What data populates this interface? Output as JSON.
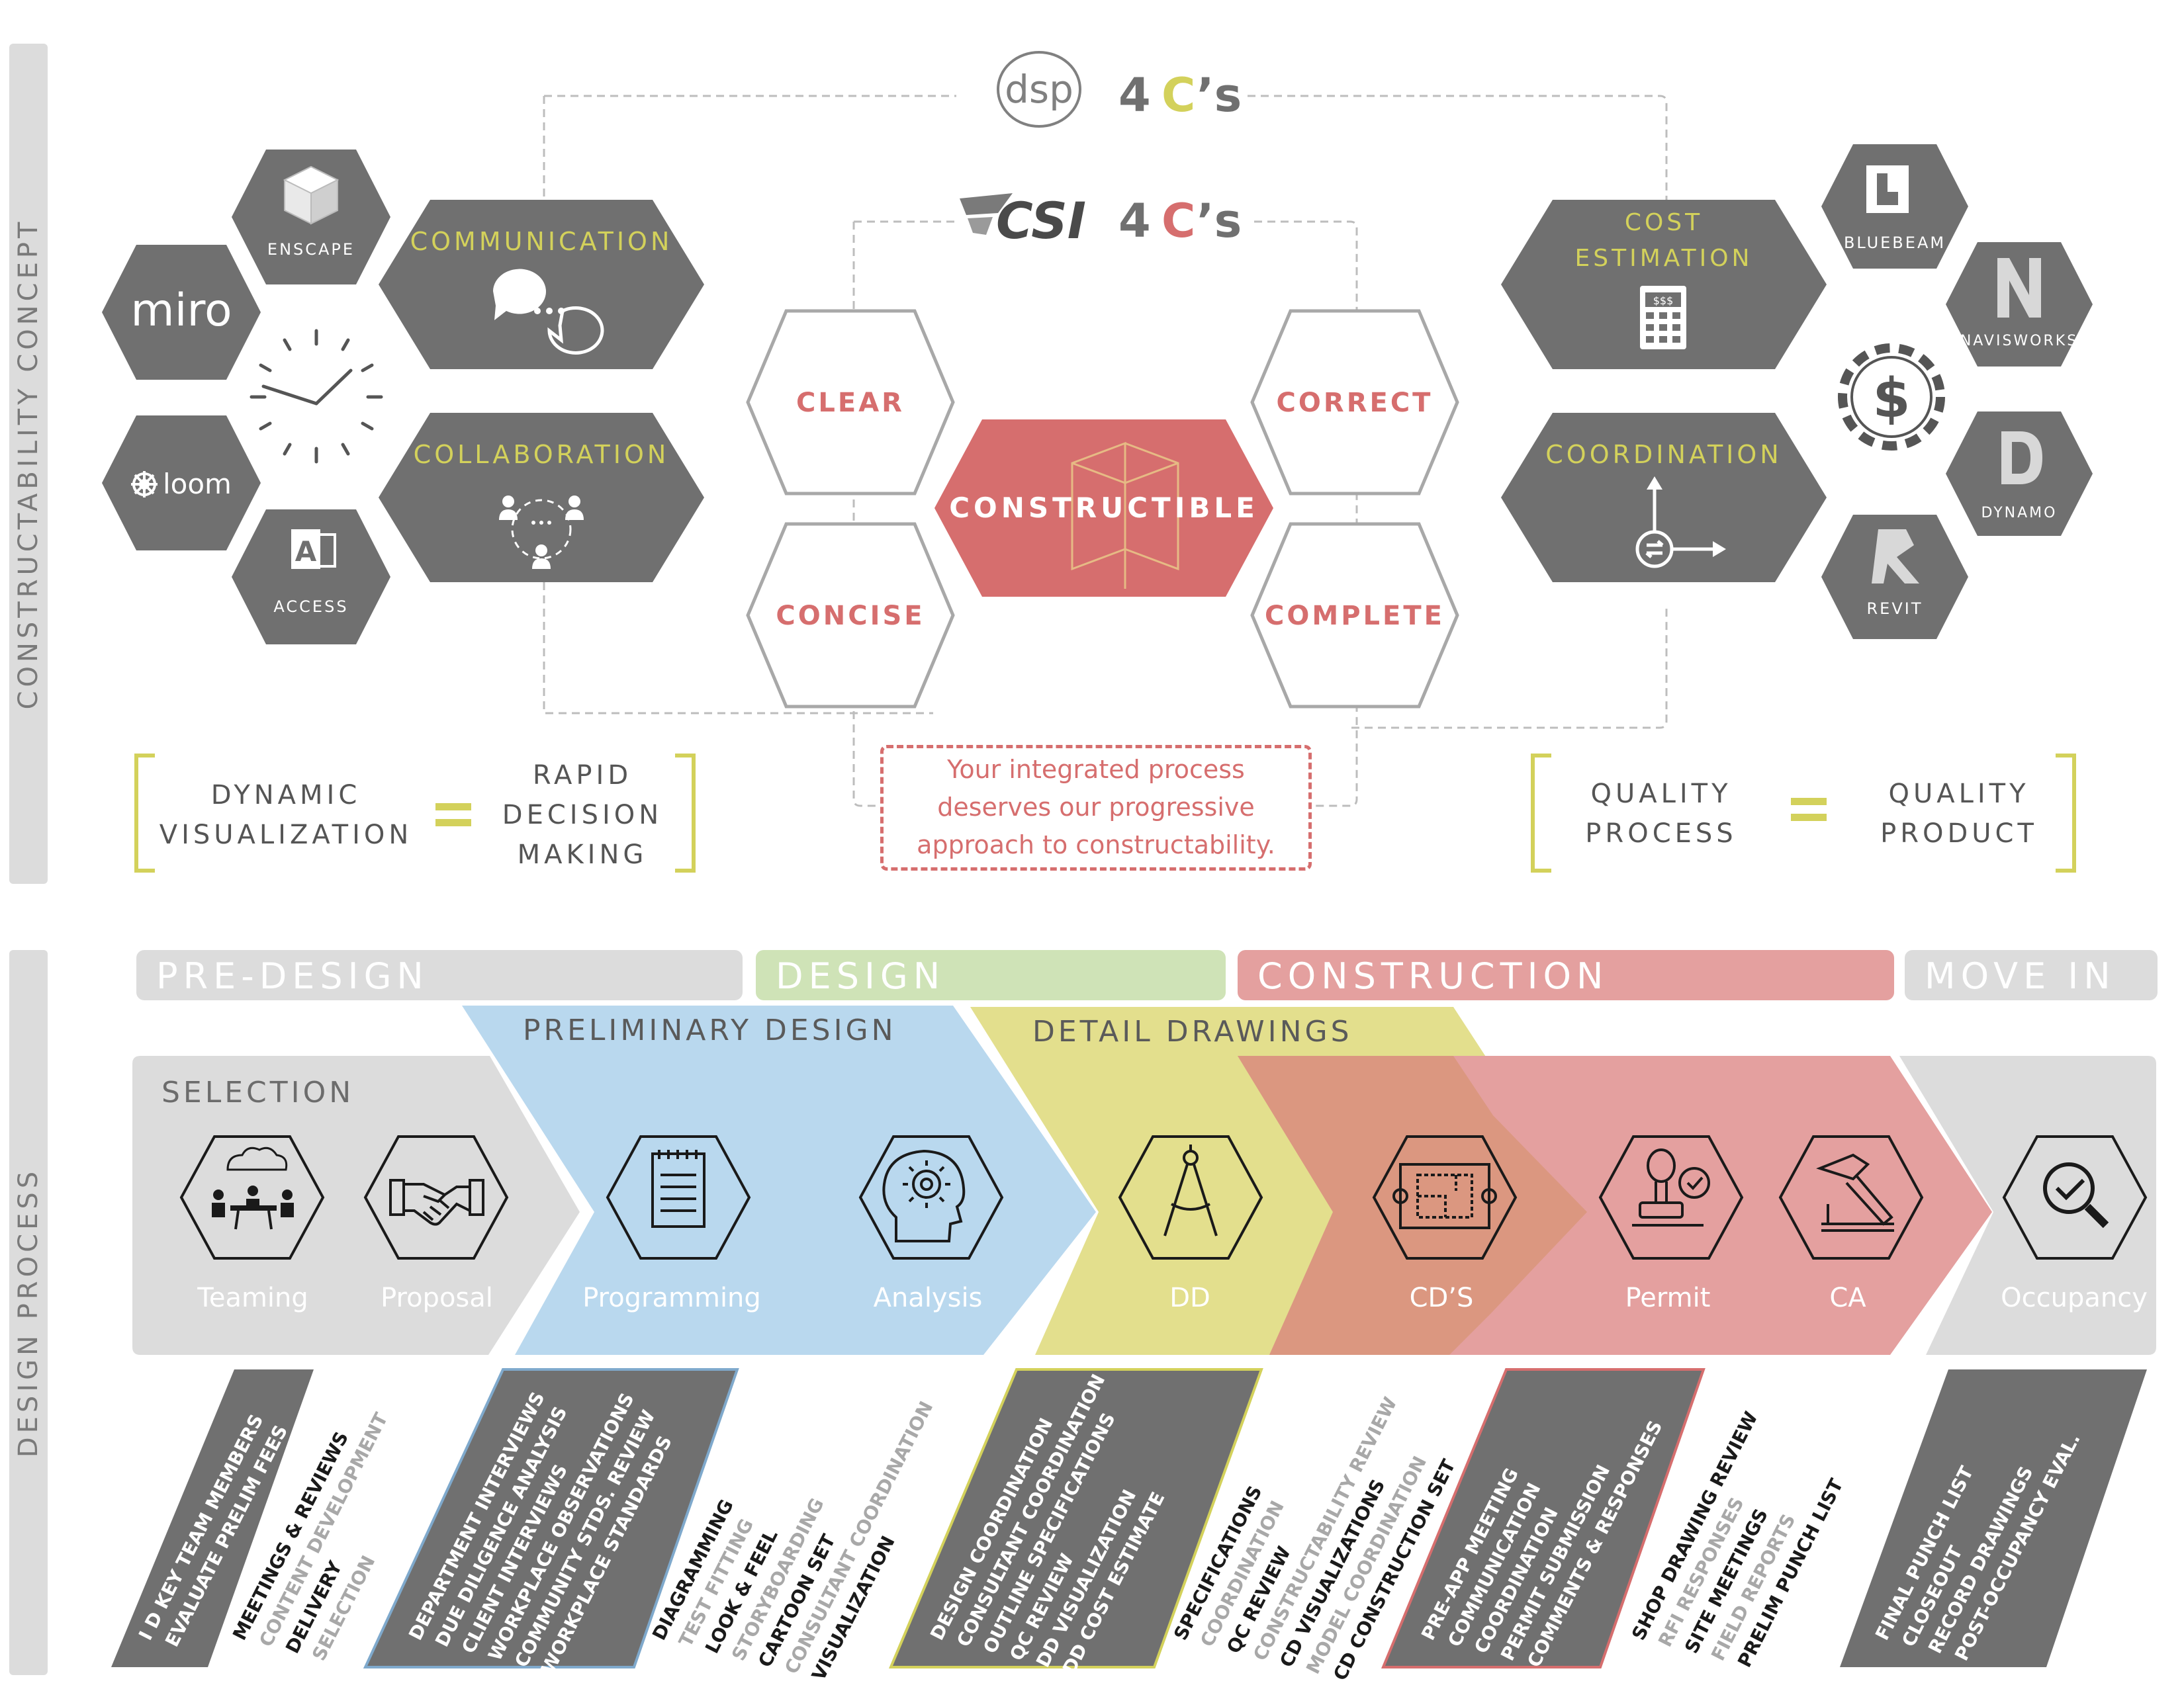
{
  "side_labels": {
    "concept": "CONSTRUCTABILITY CONCEPT",
    "process": "DESIGN PROCESS"
  },
  "dsp_header": {
    "logo": "dsp",
    "four": "4",
    "c": "C",
    "s": "’s"
  },
  "csi_header": {
    "logo": "CSI",
    "four": "4",
    "c": "C",
    "s": "’s"
  },
  "left_hexes": {
    "enscape": "ENSCAPE",
    "miro": "miro",
    "loom": "loom",
    "access": "ACCESS",
    "communication": "COMMUNICATION",
    "collaboration": "COLLABORATION"
  },
  "center_hexes": {
    "clear": "CLEAR",
    "concise": "CONCISE",
    "correct": "CORRECT",
    "complete": "COMPLETE",
    "constructible": "CONSTRUCTIBLE"
  },
  "right_hexes": {
    "cost_line1": "COST",
    "cost_line2": "ESTIMATION",
    "coordination": "COORDINATION",
    "bluebeam": "BLUEBEAM",
    "navisworks": "NAVISWORKS",
    "dynamo": "DYNAMO",
    "revit": "REVIT"
  },
  "equations": {
    "left_a": [
      "DYNAMIC",
      "VISUALIZATION"
    ],
    "left_b": [
      "RAPID",
      "DECISION",
      "MAKING"
    ],
    "right_a": [
      "QUALITY",
      "PROCESS"
    ],
    "right_b": [
      "QUALITY",
      "PRODUCT"
    ]
  },
  "tagline": [
    "Your integrated process",
    "deserves our progressive",
    "approach to constructability."
  ],
  "phases": {
    "pre_design": "PRE-DESIGN",
    "design": "DESIGN",
    "construction": "CONSTRUCTION",
    "move_in": "MOVE IN"
  },
  "process_bands": {
    "selection": "SELECTION",
    "preliminary": "PRELIMINARY DESIGN",
    "detail": "DETAIL DRAWINGS"
  },
  "steps": [
    "Teaming",
    "Proposal",
    "Programming",
    "Analysis",
    "DD",
    "CD’S",
    "Permit",
    "CA",
    "Occupancy"
  ],
  "task_groups": [
    {
      "box": [
        "I D KEY TEAM MEMBERS",
        "EVALUATE PRELIM FEES"
      ],
      "list": [
        [
          "MEETINGS & REVIEWS",
          "dark"
        ],
        [
          "CONTENT DEVELOPMENT",
          "gray"
        ],
        [
          "DELIVERY",
          "dark"
        ],
        [
          "SELECTION",
          "gray"
        ]
      ]
    },
    {
      "box": [
        "DEPARTMENT INTERVIEWS",
        "DUE DILIGENCE ANALYSIS",
        "CLIENT INTERVIEWS",
        "WORKPLACE OBSERVATIONS",
        "COMMUNITY STDS. REVIEW",
        "WORKPLACE STANDARDS"
      ],
      "list": [
        [
          "DIAGRAMMING",
          "dark"
        ],
        [
          "TEST FITTING",
          "gray"
        ],
        [
          "LOOK & FEEL",
          "dark"
        ],
        [
          "STORYBOARDING",
          "gray"
        ],
        [
          "CARTOON SET",
          "dark"
        ],
        [
          "CONSULTANT COORDINATION",
          "gray"
        ],
        [
          "VISUALIZATION",
          "dark"
        ]
      ]
    },
    {
      "box": [
        "DESIGN COORDINATION",
        "CONSULTANT COORDINATION",
        "OUTLINE SPECIFICATIONS",
        "QC REVIEW",
        "DD VISUALIZATION",
        "DD COST ESTIMATE"
      ],
      "list": [
        [
          "SPECIFICATIONS",
          "dark"
        ],
        [
          "COORDINATION",
          "gray"
        ],
        [
          "QC REVIEW",
          "dark"
        ],
        [
          "CONSTRUCTABILITY REVIEW",
          "gray"
        ],
        [
          "CD VISUALIZATIONS",
          "dark"
        ],
        [
          "MODEL COORDINATION",
          "gray"
        ],
        [
          "CD  CONSTRUCTION SET",
          "dark"
        ]
      ]
    },
    {
      "box": [
        "PRE-APP MEETING",
        "COMMUNICATION",
        "COORDINATION",
        "PERMIT SUBMISSION",
        "COMMENTS & RESPONSES"
      ],
      "list": [
        [
          "SHOP DRAWING REVIEW",
          "dark"
        ],
        [
          "RFI RESPONSES",
          "gray"
        ],
        [
          "SITE MEETINGS",
          "dark"
        ],
        [
          "FIELD REPORTS",
          "gray"
        ],
        [
          "PRELIM PUNCH LIST",
          "dark"
        ]
      ]
    },
    {
      "box": [
        "FINAL PUNCH LIST",
        "CLOSEOUT",
        "RECORD DRAWINGS",
        "POST-OCCUPANCY EVAL."
      ],
      "list": []
    }
  ],
  "colors": {
    "hex_gray": "#707070",
    "yellow": "#d3d15b",
    "red": "#d66e6e",
    "blue": "#b9d8ee",
    "olive": "#e3df8d",
    "salmon": "#e4a09f",
    "green": "#cfe3b7",
    "light_gray": "#dcdcdc"
  }
}
